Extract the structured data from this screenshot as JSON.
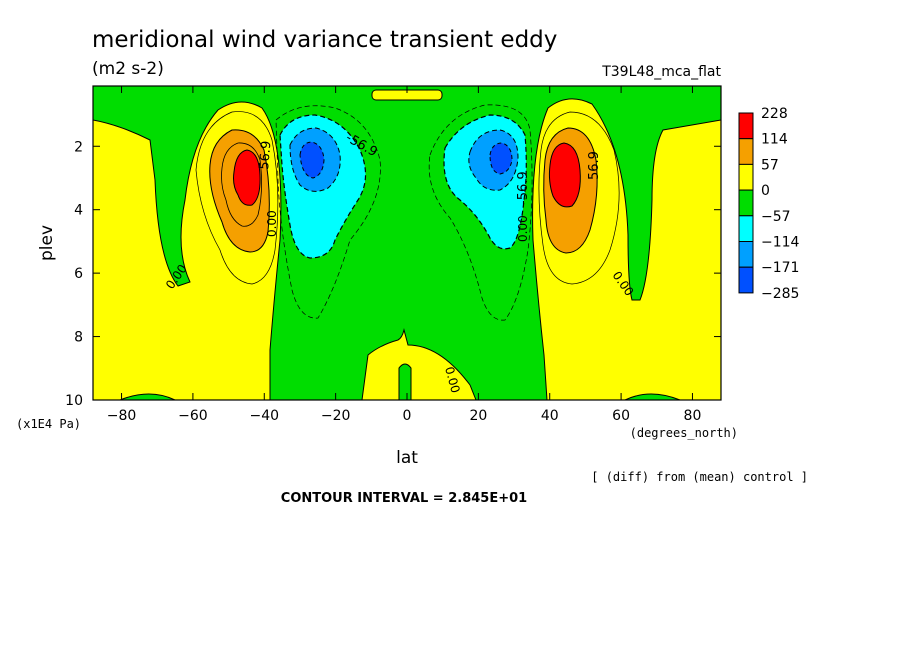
{
  "chart_data": {
    "type": "contour",
    "title": "meridional wind variance transient eddy",
    "units": "(m2 s-2)",
    "experiment": "T39L48_mca_flat",
    "xlabel": "lat",
    "x_units": "(degrees_north)",
    "ylabel": "plev",
    "y_units": "(x1E4 Pa)",
    "xlim": [
      -88,
      88
    ],
    "ylim": [
      10,
      0.1
    ],
    "x_ticks": [
      -80,
      -60,
      -40,
      -20,
      0,
      20,
      40,
      60,
      80
    ],
    "y_ticks": [
      2,
      4,
      6,
      8,
      10
    ],
    "colorbar": {
      "labels": [
        "228",
        "114",
        "57",
        "0",
        "-57",
        "-114",
        "-171",
        "-285"
      ],
      "colors": [
        "#ff0000",
        "#f5a000",
        "#ffff00",
        "#00dd00",
        "#00ffff",
        "#00a0ff",
        "#0050ff"
      ]
    },
    "contour_labels": [
      "56.9",
      "-56.9",
      "0.00",
      "0.00",
      "0.00",
      "0.00",
      "0.00",
      "-56.9",
      "56.9",
      "0.00",
      "0.00"
    ],
    "features": [
      {
        "name": "positive-max-south",
        "lat": -45,
        "plev": 2.7,
        "value": 228
      },
      {
        "name": "negative-min-south",
        "lat": -28,
        "plev": 2.4,
        "value": -285
      },
      {
        "name": "negative-min-north",
        "lat": 27,
        "plev": 2.4,
        "value": -285
      },
      {
        "name": "positive-max-north",
        "lat": 44,
        "plev": 2.7,
        "value": 228
      }
    ],
    "contour_interval_text": "CONTOUR INTERVAL = 2.845E+01",
    "comparison_text": "[ (diff) from (mean) control ]"
  }
}
